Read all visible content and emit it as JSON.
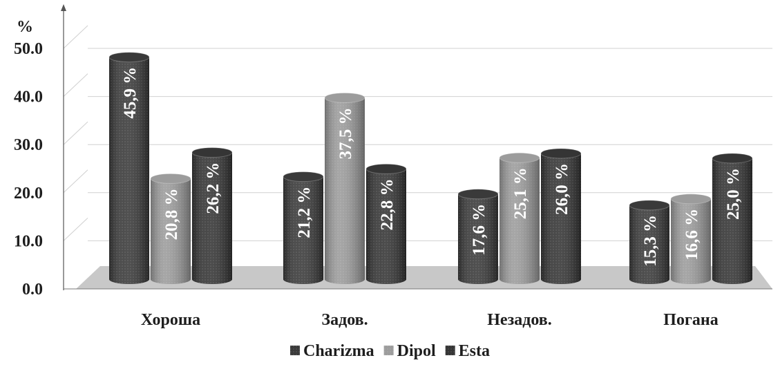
{
  "chart_data": {
    "type": "bar",
    "title": "",
    "xlabel": "",
    "ylabel": "%",
    "ylim": [
      0,
      50
    ],
    "yticks": [
      "0.0",
      "10.0",
      "20.0",
      "30.0",
      "40.0",
      "50.0"
    ],
    "categories": [
      "Хороша",
      "Задов.",
      "Незадов.",
      "Погана"
    ],
    "series": [
      {
        "name": "Charizma",
        "values": [
          45.9,
          21.2,
          17.6,
          15.3
        ],
        "labels": [
          "45,9 %",
          "21,2 %",
          "17,6 %",
          "15,3 %"
        ],
        "color": "#3a3a3a"
      },
      {
        "name": "Dipol",
        "values": [
          20.8,
          37.5,
          25.1,
          16.6
        ],
        "labels": [
          "20,8 %",
          "37,5 %",
          "25,1 %",
          "16,6 %"
        ],
        "color": "#9c9c9c"
      },
      {
        "name": "Esta",
        "values": [
          26.2,
          22.8,
          26.0,
          25.0
        ],
        "labels": [
          "26,2 %",
          "22,8 %",
          "26,0 %",
          "25,0 %"
        ],
        "color": "#353535"
      }
    ],
    "grid": true,
    "legend": "bottom",
    "style": "3d-cylinder"
  }
}
